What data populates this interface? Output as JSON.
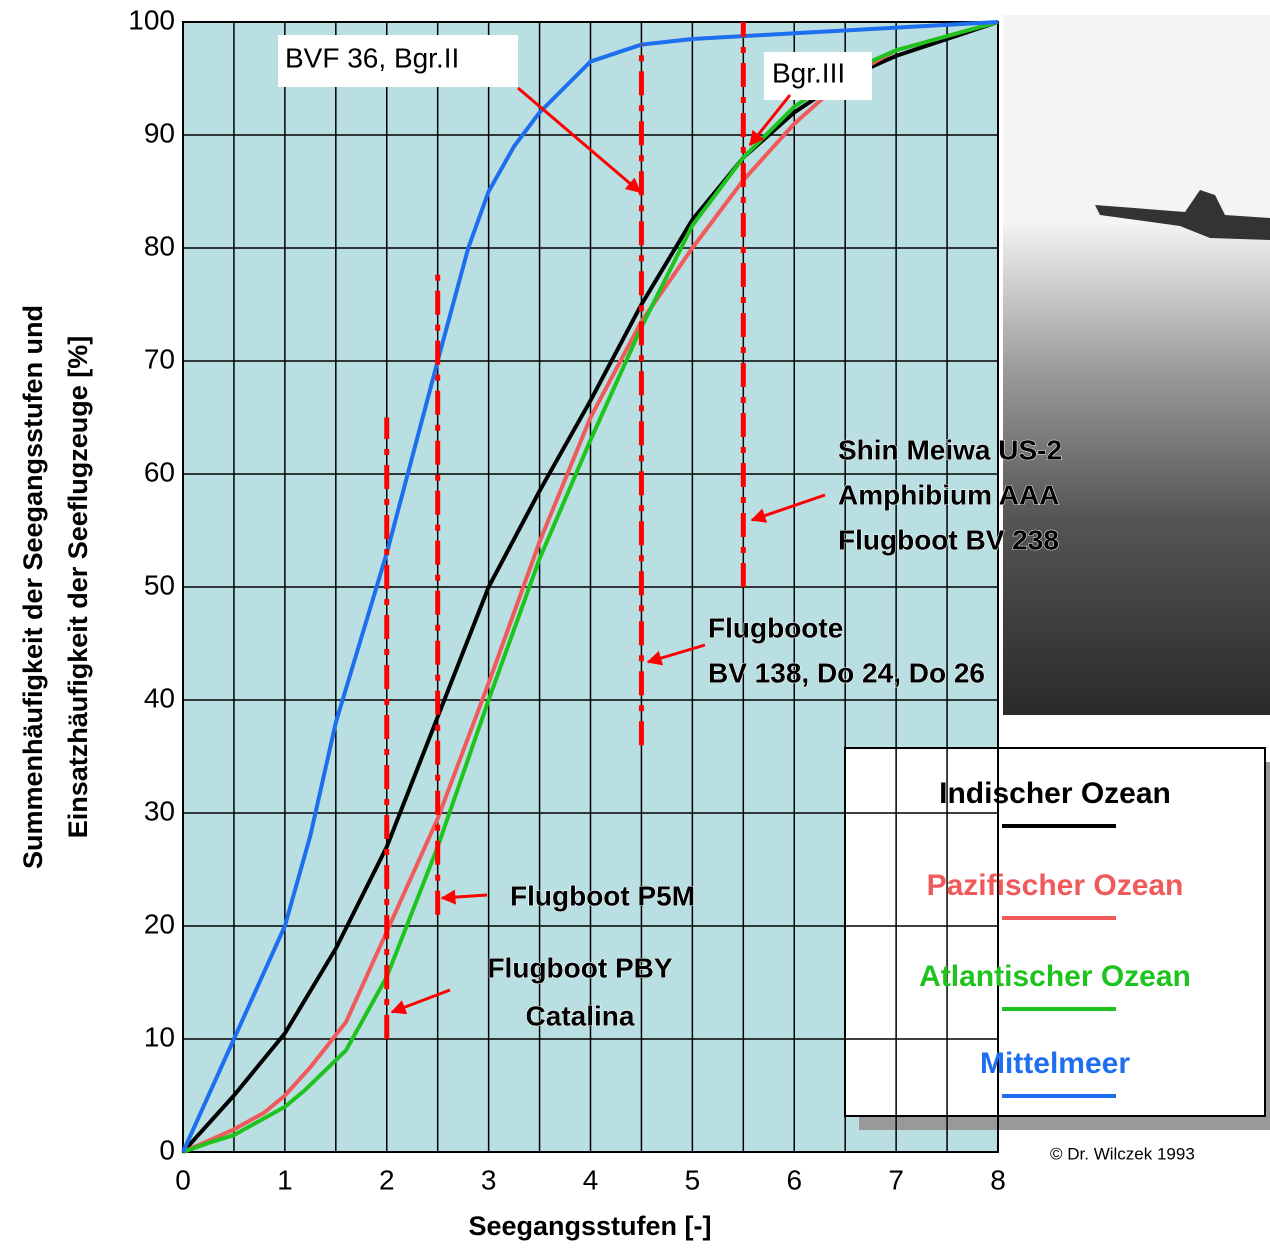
{
  "chart_data": {
    "type": "line",
    "xlabel": "Seegangsstufen [-]",
    "ylabel": [
      "Summenhäufigkeit der Seegangsstufen und",
      "Einsatzhäufigkeit der Seeflugzeuge [%]"
    ],
    "xlim": [
      0,
      8
    ],
    "ylim": [
      0,
      100
    ],
    "xticks": [
      0,
      1,
      2,
      3,
      4,
      5,
      6,
      7,
      8
    ],
    "yticks": [
      0,
      10,
      20,
      30,
      40,
      50,
      60,
      70,
      80,
      90,
      100
    ],
    "xgrid": [
      0.5,
      1,
      1.5,
      2,
      2.5,
      3,
      3.5,
      4,
      4.5,
      5,
      5.5,
      6,
      6.5,
      7,
      7.5
    ],
    "grid": true,
    "background": "#b9dfe2",
    "series": [
      {
        "name": "Indischer Ozean",
        "color": "#000000",
        "x": [
          0,
          0.5,
          1,
          1.5,
          2,
          2.5,
          3,
          3.5,
          4,
          4.5,
          5,
          5.5,
          6,
          6.5,
          7,
          7.5,
          8
        ],
        "values": [
          0,
          5,
          10.5,
          18,
          27,
          38.5,
          50,
          58.5,
          66.5,
          75,
          82.5,
          88,
          92,
          95,
          97,
          98.5,
          100
        ]
      },
      {
        "name": "Pazifischer Ozean",
        "color": "#f05a5a",
        "x": [
          0,
          0.25,
          0.5,
          0.8,
          1,
          1.25,
          1.6,
          2,
          2.5,
          3,
          3.5,
          4,
          4.5,
          5,
          5.5,
          6,
          6.5,
          7,
          8
        ],
        "values": [
          0,
          1,
          2,
          3.5,
          5,
          7.5,
          11.5,
          19.5,
          29.5,
          41.5,
          54,
          65,
          73.5,
          80,
          86,
          91,
          95,
          97.5,
          100
        ]
      },
      {
        "name": "Atlantischer Ozean",
        "color": "#1ec31e",
        "x": [
          0,
          0.25,
          0.5,
          0.8,
          1,
          1.2,
          1.6,
          2,
          2.5,
          3,
          3.5,
          4,
          4.5,
          5,
          5.5,
          6,
          6.5,
          7,
          8
        ],
        "values": [
          0,
          0.8,
          1.5,
          3,
          4,
          5.5,
          9,
          15.5,
          27,
          40,
          52.5,
          63,
          73,
          82,
          88,
          92.5,
          95.5,
          97.5,
          100
        ]
      },
      {
        "name": "Mittelmeer",
        "color": "#1e6ef0",
        "x": [
          0,
          0.5,
          1,
          1.25,
          1.5,
          2,
          2.5,
          2.8,
          3,
          3.25,
          3.5,
          4,
          4.5,
          5,
          6,
          7,
          8
        ],
        "values": [
          0,
          10,
          20,
          28,
          38,
          53,
          70,
          80,
          85,
          89,
          92,
          96.5,
          98,
          98.5,
          99,
          99.5,
          100
        ]
      }
    ],
    "reference_lines": [
      {
        "x": 2,
        "y_range": [
          10,
          65
        ]
      },
      {
        "x": 2.5,
        "y_range": [
          21,
          78
        ]
      },
      {
        "x": 4.5,
        "y_range": [
          36,
          98
        ]
      },
      {
        "x": 5.5,
        "y_range": [
          50,
          100
        ]
      }
    ],
    "annotations": [
      {
        "lines": [
          "BVF 36, Bgr.II"
        ]
      },
      {
        "lines": [
          "Bgr.III"
        ]
      },
      {
        "lines": [
          "Shin Meiwa US-2",
          "Amphibium AAA",
          "Flugboot BV 238"
        ]
      },
      {
        "lines": [
          "Flugboote",
          "BV 138, Do 24, Do 26"
        ]
      },
      {
        "lines": [
          "Flugboot P5M"
        ]
      },
      {
        "lines": [
          "Flugboot PBY",
          "Catalina"
        ]
      }
    ],
    "copyright": "© Dr. Wilczek 1993"
  }
}
